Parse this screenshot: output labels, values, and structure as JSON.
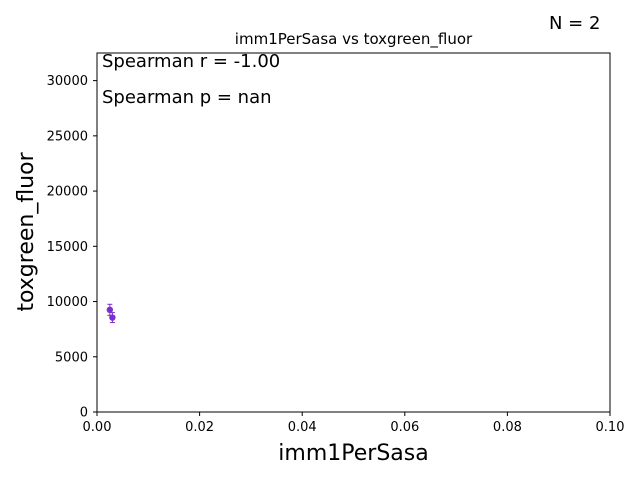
{
  "chart_data": {
    "type": "scatter",
    "title": "imm1PerSasa vs toxgreen_fluor",
    "xlabel": "imm1PerSasa",
    "ylabel": "toxgreen_fluor",
    "xlim": [
      0,
      0.1
    ],
    "ylim": [
      0,
      32500
    ],
    "xticks": [
      0,
      0.02,
      0.04,
      0.06,
      0.08,
      0.1
    ],
    "xtick_labels": [
      "0.00",
      "0.02",
      "0.04",
      "0.06",
      "0.08",
      "0.10"
    ],
    "yticks": [
      0,
      5000,
      10000,
      15000,
      20000,
      25000,
      30000
    ],
    "ytick_labels": [
      "0",
      "5000",
      "10000",
      "15000",
      "20000",
      "25000",
      "30000"
    ],
    "points": [
      {
        "x": 0.0025,
        "y": 9250,
        "err": 500
      },
      {
        "x": 0.003,
        "y": 8550,
        "err": 450
      }
    ],
    "point_color": "#7b2fd0",
    "annotations": [
      "Spearman r = -1.00",
      "Spearman p = nan"
    ],
    "grid": false
  },
  "n_label": "N = 2"
}
